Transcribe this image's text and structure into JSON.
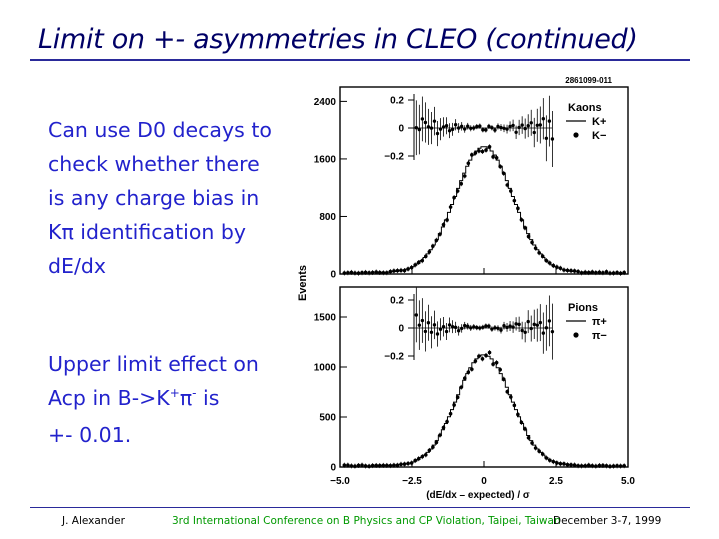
{
  "slide": {
    "title": "Limit on +- asymmetries in CLEO (continued)",
    "text_block_1": [
      "Can use D0 decays to",
      "check whether there",
      "is any charge bias in",
      "Kπ identification by",
      "dE/dx"
    ],
    "text_block_2": {
      "line1": "Upper limit effect on",
      "line2_pre": "Acp in B->K",
      "line2_sup1": "+",
      "line2_mid": "π",
      "line2_sup2": "-",
      "line2_post": " is",
      "line3": "+- 0.01."
    },
    "footer": {
      "left": "J. Alexander",
      "center": "3rd International Conference on B Physics and CP Violation, Taipei, Taiwan",
      "right": "December 3-7, 1999"
    },
    "colors": {
      "title": "#000066",
      "text": "#2222cc",
      "footer_center": "#009900",
      "rule": "#2a2a9a"
    }
  },
  "chart_data": {
    "type": "histogram",
    "figure_id": "2861099-011",
    "ylabel": "Events",
    "xlabel": "(dE/dx – expected) / σ",
    "x_ticks": [
      "−5.0",
      "−2.5",
      "0",
      "2.5",
      "5.0"
    ],
    "xlim": [
      -5,
      5
    ],
    "panels": [
      {
        "legend_title": "Kaons",
        "series": [
          {
            "name": "K+",
            "marker": "line"
          },
          {
            "name": "K−",
            "marker": "dot"
          }
        ],
        "ylim": [
          0,
          2600
        ],
        "y_ticks": [
          {
            "v": 0,
            "t": "0"
          },
          {
            "v": 800,
            "t": "800"
          },
          {
            "v": 1600,
            "t": "1600"
          },
          {
            "v": 2400,
            "t": "2400"
          }
        ],
        "peak": 1750,
        "sigma": 1.0,
        "inset_ticks": [
          {
            "v": 0.2,
            "t": "0.2"
          },
          {
            "v": 0,
            "t": "0"
          },
          {
            "v": -0.2,
            "t": "−0.2"
          }
        ]
      },
      {
        "legend_title": "Pions",
        "series": [
          {
            "name": "π+",
            "marker": "line"
          },
          {
            "name": "π−",
            "marker": "dot"
          }
        ],
        "ylim": [
          0,
          1800
        ],
        "y_ticks": [
          {
            "v": 0,
            "t": "0"
          },
          {
            "v": 500,
            "t": "500"
          },
          {
            "v": 1000,
            "t": "1000"
          },
          {
            "v": 1500,
            "t": "1500"
          }
        ],
        "peak": 1110,
        "sigma": 0.95,
        "inset_ticks": [
          {
            "v": 0.2,
            "t": "0.2"
          },
          {
            "v": 0,
            "t": "0"
          },
          {
            "v": -0.2,
            "t": "−0.2"
          }
        ]
      }
    ]
  }
}
